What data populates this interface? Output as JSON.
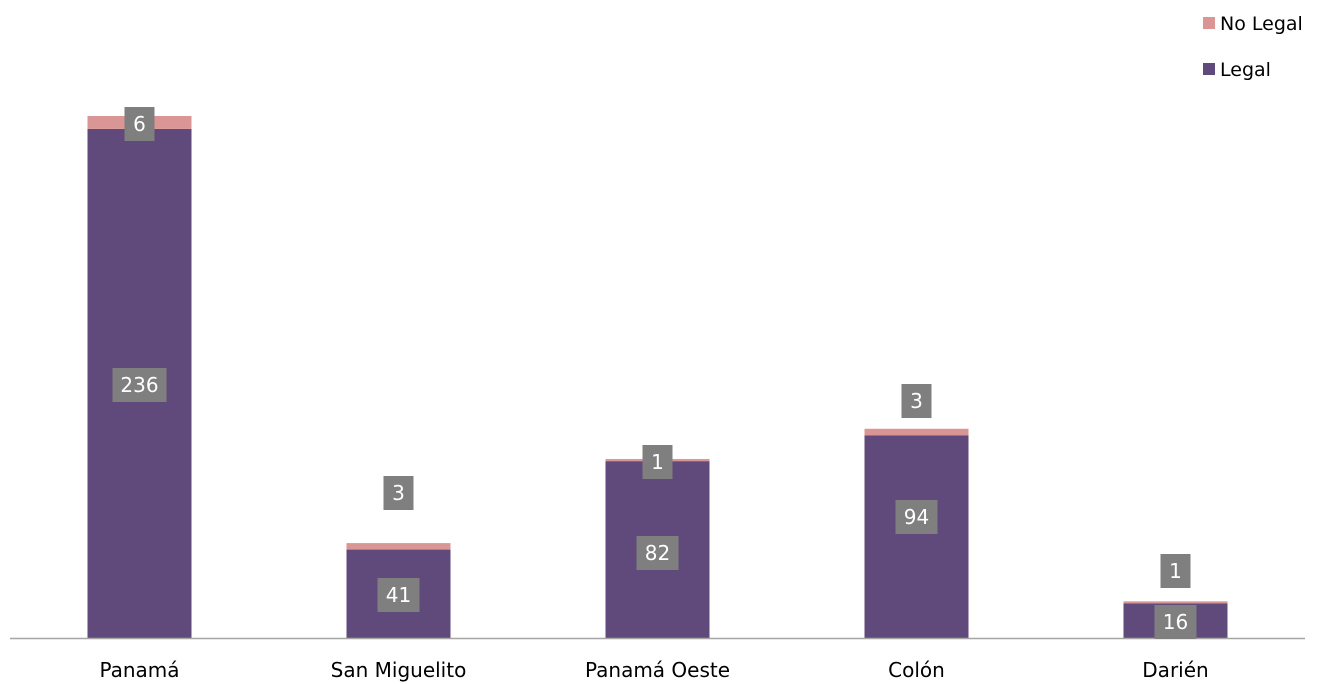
{
  "chart_data": {
    "type": "bar",
    "stacked": true,
    "categories": [
      "Panamá",
      "San Miguelito",
      "Panamá Oeste",
      "Colón",
      "Darién"
    ],
    "series": [
      {
        "name": "Legal",
        "values": [
          236,
          41,
          82,
          94,
          16
        ],
        "color": "#604a7b"
      },
      {
        "name": "No Legal",
        "values": [
          6,
          3,
          1,
          3,
          1
        ],
        "color": "#d99694"
      }
    ],
    "title": "",
    "xlabel": "",
    "ylabel": "",
    "ylim": [
      0,
      242
    ],
    "grid": false,
    "legend": "top-right",
    "data_label_color": "#7f7f7f",
    "axis_color": "#a6a6a6"
  }
}
